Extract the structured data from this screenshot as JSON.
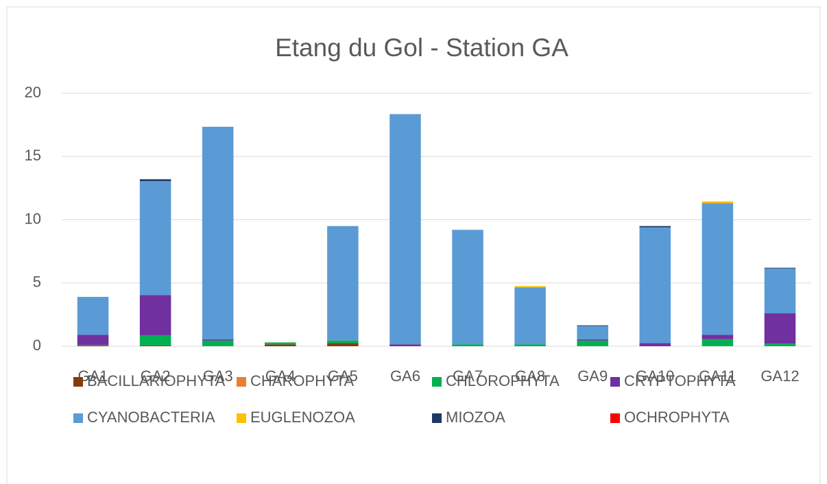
{
  "chart_data": {
    "type": "bar",
    "stacked": true,
    "title": "Etang du Gol - Station GA",
    "categories": [
      "GA1",
      "GA2",
      "GA3",
      "GA4",
      "GA5",
      "GA6",
      "GA7",
      "GA8",
      "GA9",
      "GA10",
      "GA11",
      "GA12"
    ],
    "series": [
      {
        "name": "BACILLARIOPHYTA",
        "color": "#843c0c",
        "values": [
          0.05,
          0.05,
          0,
          0.15,
          0.25,
          0,
          0,
          0,
          0,
          0,
          0,
          0
        ]
      },
      {
        "name": "CHAROPHYTA",
        "color": "#ed7d31",
        "values": [
          0,
          0,
          0,
          0,
          0,
          0,
          0,
          0,
          0,
          0,
          0,
          0
        ]
      },
      {
        "name": "CHLOROPHYTA",
        "color": "#00b050",
        "values": [
          0.05,
          0.8,
          0.45,
          0.15,
          0.2,
          0,
          0.15,
          0.15,
          0.45,
          0,
          0.55,
          0.2
        ]
      },
      {
        "name": "CRYPTOPHYTA",
        "color": "#7030a0",
        "values": [
          0.8,
          3.2,
          0.1,
          0,
          0,
          0.15,
          0,
          0,
          0.1,
          0.25,
          0.35,
          2.4
        ]
      },
      {
        "name": "CYANOBACTERIA",
        "color": "#5b9bd5",
        "values": [
          3.0,
          9.0,
          16.8,
          0,
          9.05,
          18.2,
          9.05,
          4.5,
          1.05,
          9.15,
          10.4,
          3.55
        ]
      },
      {
        "name": "EUGLENOZOA",
        "color": "#ffc000",
        "values": [
          0,
          0,
          0,
          0,
          0,
          0,
          0,
          0.1,
          0,
          0,
          0.15,
          0
        ]
      },
      {
        "name": "MIOZOA",
        "color": "#1f3864",
        "values": [
          0,
          0.15,
          0,
          0,
          0,
          0,
          0,
          0,
          0.05,
          0.1,
          0,
          0.05
        ]
      },
      {
        "name": "OCHROPHYTA",
        "color": "#ff0000",
        "values": [
          0,
          0,
          0,
          0,
          0,
          0,
          0,
          0,
          0,
          0,
          0,
          0
        ]
      }
    ],
    "ylim": [
      0,
      20
    ],
    "yticks": [
      0,
      5,
      10,
      15,
      20
    ],
    "grid": true,
    "legend": "bottom"
  }
}
